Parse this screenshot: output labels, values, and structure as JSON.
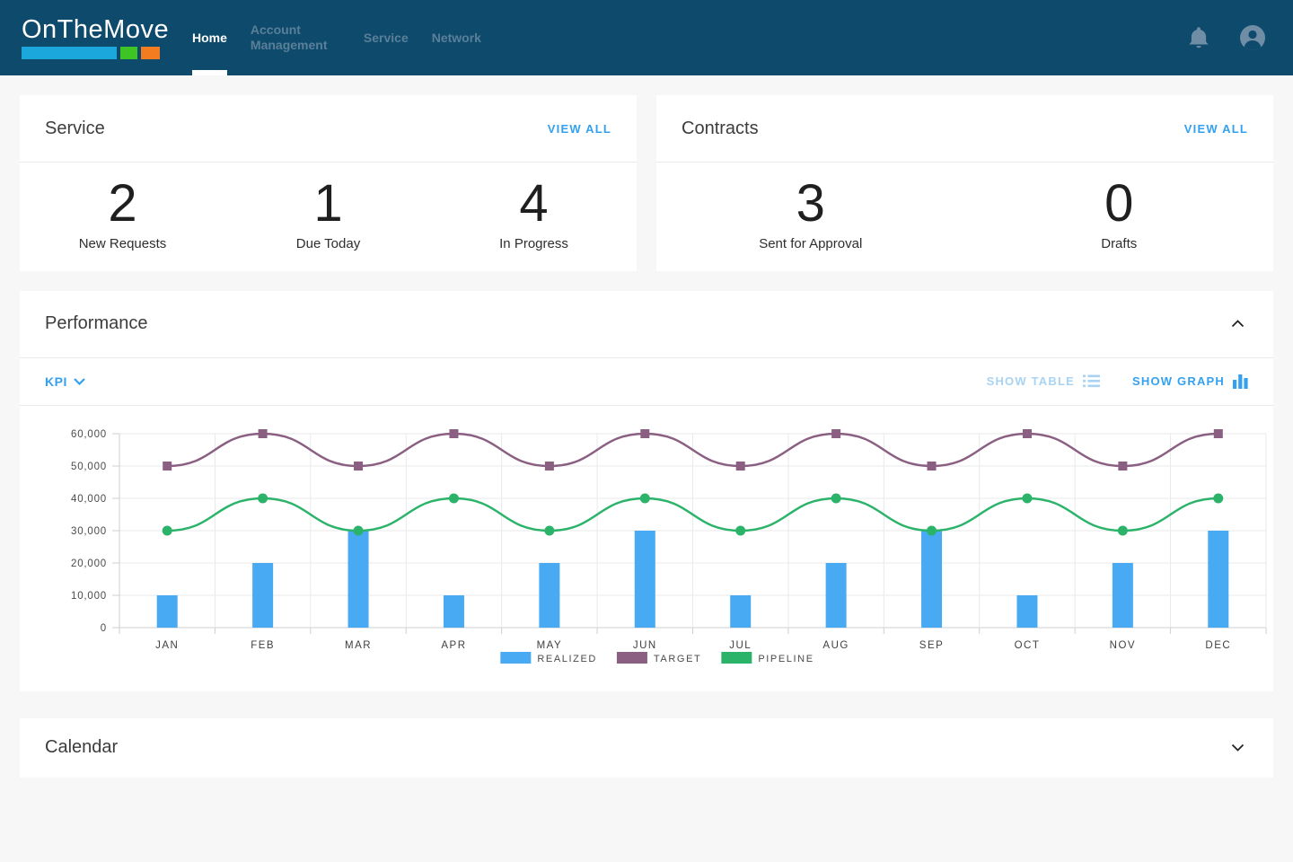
{
  "navbar": {
    "logo_text": "OnTheMove",
    "logo_bar_colors": {
      "blue": "#1ba7dc",
      "green": "#3fc426",
      "orange": "#f47c20"
    },
    "items": [
      {
        "label": "Home",
        "active": true
      },
      {
        "label": "Account Management",
        "active": false
      },
      {
        "label": "Service",
        "active": false
      },
      {
        "label": "Network",
        "active": false
      }
    ],
    "icons": [
      "notifications-bell",
      "user-profile"
    ]
  },
  "cards": {
    "service": {
      "title": "Service",
      "view_all_label": "VIEW ALL",
      "stats": [
        {
          "value": "2",
          "label": "New Requests"
        },
        {
          "value": "1",
          "label": "Due Today"
        },
        {
          "value": "4",
          "label": "In Progress"
        }
      ]
    },
    "contracts": {
      "title": "Contracts",
      "view_all_label": "VIEW ALL",
      "stats": [
        {
          "value": "3",
          "label": "Sent for Approval"
        },
        {
          "value": "0",
          "label": "Drafts"
        }
      ]
    }
  },
  "performance": {
    "title": "Performance",
    "kpi_label": "KPI",
    "show_table_label": "SHOW TABLE",
    "show_graph_label": "SHOW GRAPH",
    "active_view": "graph"
  },
  "calendar": {
    "title": "Calendar"
  },
  "chart_data": {
    "type": "bar",
    "note": "combo chart: bars + two smoothed lines",
    "categories": [
      "JAN",
      "FEB",
      "MAR",
      "APR",
      "MAY",
      "JUN",
      "JUL",
      "AUG",
      "SEP",
      "OCT",
      "NOV",
      "DEC"
    ],
    "series": [
      {
        "name": "REALIZED",
        "type": "bar",
        "color": "#47aaf3",
        "marker": "none",
        "values": [
          10000,
          20000,
          30000,
          10000,
          20000,
          30000,
          10000,
          20000,
          30000,
          10000,
          20000,
          30000
        ]
      },
      {
        "name": "TARGET",
        "type": "line",
        "color": "#8a5f82",
        "marker": "square",
        "values": [
          50000,
          60000,
          50000,
          60000,
          50000,
          60000,
          50000,
          60000,
          50000,
          60000,
          50000,
          60000
        ]
      },
      {
        "name": "PIPELINE",
        "type": "line",
        "color": "#2bb36a",
        "marker": "circle",
        "values": [
          30000,
          40000,
          30000,
          40000,
          30000,
          40000,
          30000,
          40000,
          30000,
          40000,
          30000,
          40000
        ]
      }
    ],
    "ylim": [
      0,
      60000
    ],
    "ytick_step": 10000,
    "ytick_labels": [
      "0",
      "10,000",
      "20,000",
      "30,000",
      "40,000",
      "50,000",
      "60,000"
    ],
    "grid": true,
    "legend_position": "bottom"
  },
  "colors": {
    "navbar_bg": "#0e4a6b",
    "accent_blue": "#33a1f0",
    "inactive_toggle_blue": "#a9d3f2",
    "muted_icon": "#6f8da4",
    "page_bg": "#f7f7f7",
    "gridline": "#e9e9e9"
  }
}
